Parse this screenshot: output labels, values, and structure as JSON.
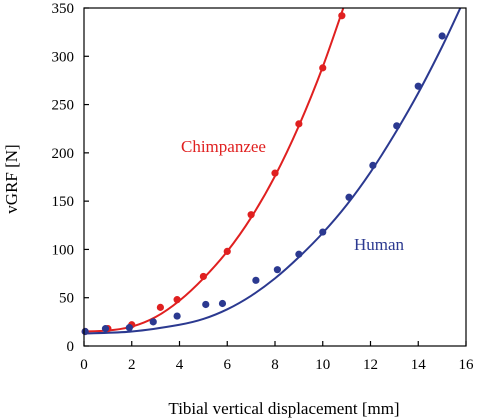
{
  "chart_data": {
    "type": "scatter",
    "title": "",
    "xlabel": "Tibial vertical displacement [mm]",
    "ylabel": "vGRF [N]",
    "xlim": [
      0,
      16
    ],
    "ylim": [
      0,
      350
    ],
    "xticks": [
      0,
      2,
      4,
      6,
      8,
      10,
      12,
      14,
      16
    ],
    "yticks": [
      0,
      50,
      100,
      150,
      200,
      250,
      300,
      350
    ],
    "grid": false,
    "legend": "inline labels",
    "series": [
      {
        "name": "Chimpanzee",
        "color": "#e02020",
        "points": [
          {
            "x": 0.05,
            "y": 15
          },
          {
            "x": 1.0,
            "y": 18
          },
          {
            "x": 2.0,
            "y": 22
          },
          {
            "x": 3.2,
            "y": 40
          },
          {
            "x": 3.9,
            "y": 48
          },
          {
            "x": 5.0,
            "y": 72
          },
          {
            "x": 6.0,
            "y": 98
          },
          {
            "x": 7.0,
            "y": 136
          },
          {
            "x": 8.0,
            "y": 179
          },
          {
            "x": 9.0,
            "y": 230
          },
          {
            "x": 10.0,
            "y": 288
          },
          {
            "x": 10.8,
            "y": 342
          }
        ],
        "fit_curve": [
          {
            "x": 0,
            "y": 15
          },
          {
            "x": 1,
            "y": 16
          },
          {
            "x": 2,
            "y": 20
          },
          {
            "x": 3,
            "y": 30
          },
          {
            "x": 4,
            "y": 47
          },
          {
            "x": 5,
            "y": 70
          },
          {
            "x": 6,
            "y": 98
          },
          {
            "x": 7,
            "y": 133
          },
          {
            "x": 8,
            "y": 176
          },
          {
            "x": 9,
            "y": 228
          },
          {
            "x": 10,
            "y": 289
          },
          {
            "x": 11,
            "y": 360
          }
        ]
      },
      {
        "name": "Human",
        "color": "#2b3990",
        "points": [
          {
            "x": 0.05,
            "y": 15
          },
          {
            "x": 0.9,
            "y": 18
          },
          {
            "x": 1.9,
            "y": 19
          },
          {
            "x": 2.9,
            "y": 25
          },
          {
            "x": 3.9,
            "y": 31
          },
          {
            "x": 5.1,
            "y": 43
          },
          {
            "x": 5.8,
            "y": 44
          },
          {
            "x": 7.2,
            "y": 68
          },
          {
            "x": 8.1,
            "y": 79
          },
          {
            "x": 9.0,
            "y": 95
          },
          {
            "x": 10.0,
            "y": 118
          },
          {
            "x": 11.1,
            "y": 154
          },
          {
            "x": 12.1,
            "y": 187
          },
          {
            "x": 13.1,
            "y": 228
          },
          {
            "x": 14.0,
            "y": 269
          },
          {
            "x": 15.0,
            "y": 321
          }
        ],
        "fit_curve": [
          {
            "x": 0,
            "y": 13
          },
          {
            "x": 2,
            "y": 15
          },
          {
            "x": 4,
            "y": 22
          },
          {
            "x": 5,
            "y": 28
          },
          {
            "x": 6,
            "y": 38
          },
          {
            "x": 7,
            "y": 52
          },
          {
            "x": 8,
            "y": 70
          },
          {
            "x": 9,
            "y": 92
          },
          {
            "x": 10,
            "y": 117
          },
          {
            "x": 11,
            "y": 146
          },
          {
            "x": 12,
            "y": 180
          },
          {
            "x": 13,
            "y": 219
          },
          {
            "x": 14,
            "y": 262
          },
          {
            "x": 15,
            "y": 310
          },
          {
            "x": 15.8,
            "y": 352
          }
        ]
      }
    ]
  }
}
